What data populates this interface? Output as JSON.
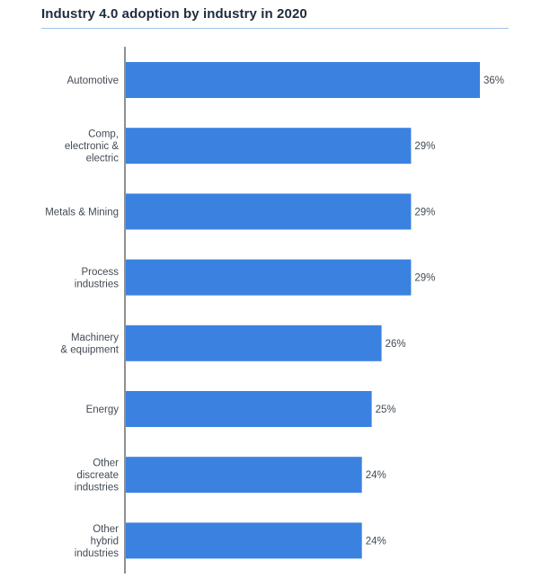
{
  "chart_data": {
    "type": "bar",
    "orientation": "horizontal",
    "title": "Industry 4.0 adoption by industry in 2020",
    "categories": [
      "Automotive",
      "Comp, electronic & electric",
      "Metals & Mining",
      "Process industries",
      "Machinery & equipment",
      "Energy",
      "Other discreate industries",
      "Other hybrid industries"
    ],
    "category_lines": [
      [
        "Automotive"
      ],
      [
        "Comp,",
        "electronic &",
        "electric"
      ],
      [
        "Metals & Mining"
      ],
      [
        "Process",
        "industries"
      ],
      [
        "Machinery",
        "& equipment"
      ],
      [
        "Energy"
      ],
      [
        "Other",
        "discreate",
        "industries"
      ],
      [
        "Other",
        "hybrid",
        "industries"
      ]
    ],
    "values": [
      36,
      29,
      29,
      29,
      26,
      25,
      24,
      24
    ],
    "value_labels": [
      "36%",
      "29%",
      "29%",
      "29%",
      "26%",
      "25%",
      "24%",
      "24%"
    ],
    "unit": "%",
    "xlim": [
      0,
      36
    ],
    "grid": false,
    "legend": "none",
    "bar_color": "#3b82e0"
  }
}
